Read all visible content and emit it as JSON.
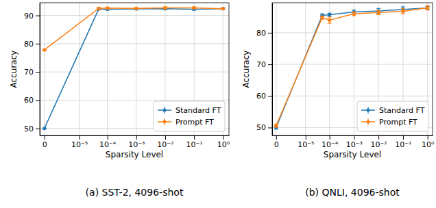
{
  "chart_data": [
    {
      "type": "line",
      "title": "(a) SST-2, 4096-shot",
      "x_label": "Sparsity Level",
      "y_label": "Accuracy",
      "x": [
        0,
        5e-05,
        0.0001,
        0.001,
        0.01,
        0.1,
        1
      ],
      "series": [
        {
          "name": "Standard FT",
          "color": "#1f77b4",
          "marker": "circle",
          "line_style": "solid",
          "values": [
            50.0,
            92.3,
            92.2,
            92.3,
            92.4,
            92.2,
            92.4
          ],
          "errors": [
            0.1,
            0.3,
            0.3,
            0.3,
            0.3,
            0.3,
            0.3
          ]
        },
        {
          "name": "Prompt FT",
          "color": "#ff7f0e",
          "marker": "circle",
          "line_style": "solid",
          "values": [
            77.8,
            92.5,
            92.6,
            92.5,
            92.7,
            92.7,
            92.4
          ],
          "errors": [
            0.2,
            0.3,
            0.3,
            0.3,
            0.3,
            0.3,
            0.3
          ]
        }
      ],
      "log": "x",
      "xlim": [
        -3e-07,
        1.6
      ],
      "xticks": [
        0,
        {
          "value": 1e-05,
          "label": "10⁻⁵"
        },
        {
          "value": 0.0001,
          "label": "10⁻⁴"
        },
        {
          "value": 0.001,
          "label": "10⁻³"
        },
        {
          "value": 0.01,
          "label": "10⁻²"
        },
        {
          "value": 0.1,
          "label": "10⁻¹"
        },
        {
          "value": 1,
          "label": "10⁰"
        }
      ],
      "ylim": [
        47.5,
        94.5
      ],
      "yticks": [
        50,
        60,
        70,
        80,
        90
      ],
      "grid": true,
      "legend": "lower right"
    },
    {
      "type": "line",
      "title": "(b) QNLI, 4096-shot",
      "x_label": "Sparsity Level",
      "y_label": "Accuracy",
      "x": [
        0,
        5e-05,
        0.0001,
        0.001,
        0.01,
        0.1,
        1
      ],
      "series": [
        {
          "name": "Standard FT",
          "color": "#1f77b4",
          "marker": "circle",
          "line_style": "solid",
          "values": [
            50.0,
            85.5,
            85.7,
            86.6,
            86.9,
            87.4,
            87.8
          ],
          "errors": [
            0.5,
            0.5,
            0.5,
            0.6,
            0.8,
            0.8,
            0.5
          ]
        },
        {
          "name": "Prompt FT",
          "color": "#ff7f0e",
          "marker": "circle",
          "line_style": "solid",
          "values": [
            50.6,
            84.8,
            84.0,
            86.0,
            86.4,
            86.8,
            87.9
          ],
          "errors": [
            0.5,
            0.5,
            1.0,
            0.6,
            0.7,
            0.8,
            0.7
          ]
        }
      ],
      "log": "x",
      "xlim": [
        -3e-07,
        1.6
      ],
      "xticks": [
        0,
        {
          "value": 1e-05,
          "label": "10⁻⁵"
        },
        {
          "value": 0.0001,
          "label": "10⁻⁴"
        },
        {
          "value": 0.001,
          "label": "10⁻³"
        },
        {
          "value": 0.01,
          "label": "10⁻²"
        },
        {
          "value": 0.1,
          "label": "10⁻¹"
        },
        {
          "value": 1,
          "label": "10⁰"
        }
      ],
      "ylim": [
        47.5,
        89.5
      ],
      "yticks": [
        50,
        60,
        70,
        80
      ],
      "grid": true,
      "legend": "lower right"
    }
  ]
}
